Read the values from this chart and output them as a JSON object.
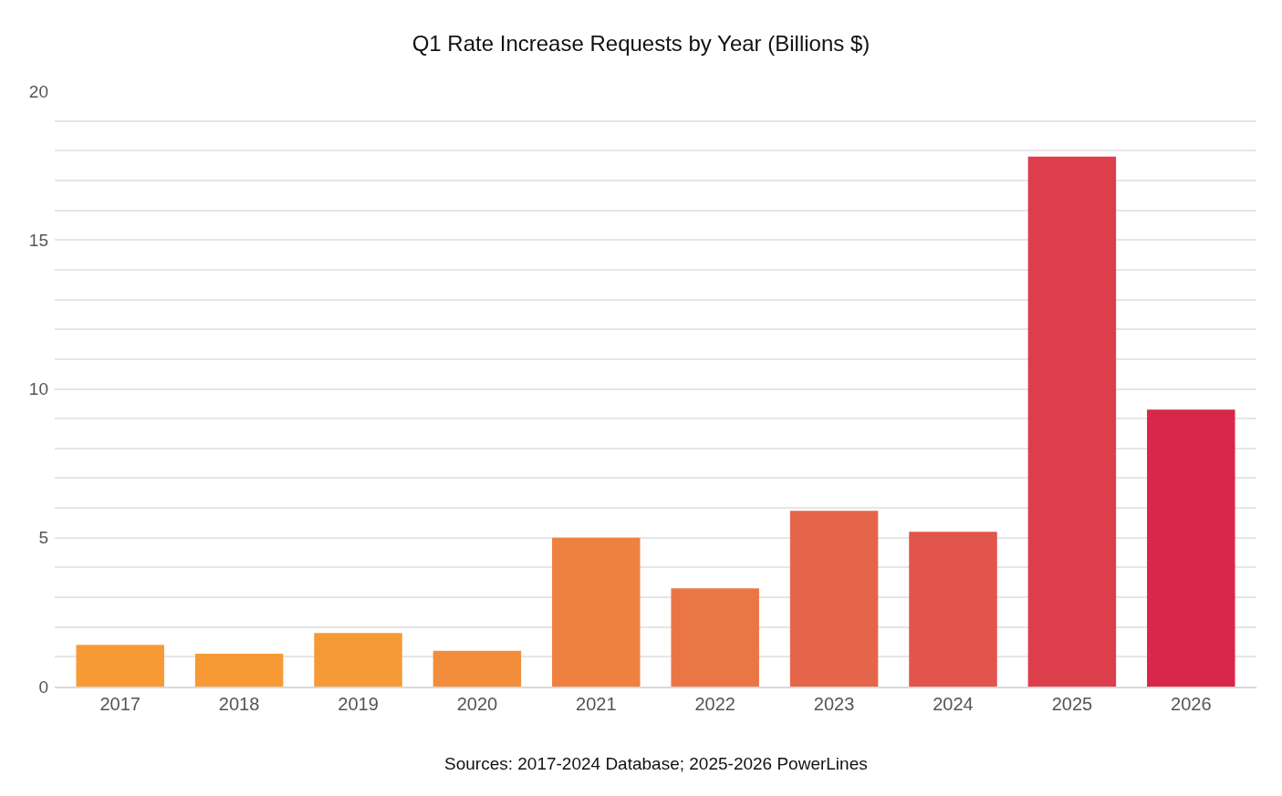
{
  "chart_data": {
    "type": "bar",
    "title": "Q1 Rate Increase Requests by Year (Billions $)",
    "categories": [
      "2017",
      "2018",
      "2019",
      "2020",
      "2021",
      "2022",
      "2023",
      "2024",
      "2025",
      "2026"
    ],
    "values": [
      1.4,
      1.1,
      1.8,
      1.2,
      5.0,
      3.3,
      5.9,
      5.2,
      17.8,
      9.3
    ],
    "colors": [
      "#f79a36",
      "#f79a36",
      "#f69a37",
      "#f28e3b",
      "#ee8140",
      "#ea7645",
      "#e5654a",
      "#e1554c",
      "#dd3e4b",
      "#d9264b"
    ],
    "ylim": [
      0,
      20
    ],
    "yticks": [
      0,
      {
        "value": 1,
        "label": null
      },
      {
        "value": 2,
        "label": null
      },
      {
        "value": 3,
        "label": null
      },
      {
        "value": 4,
        "label": null
      },
      5,
      {
        "value": 6,
        "label": null
      },
      {
        "value": 7,
        "label": null
      },
      {
        "value": 8,
        "label": null
      },
      {
        "value": 9,
        "label": null
      },
      10,
      {
        "value": 11,
        "label": null
      },
      {
        "value": 12,
        "label": null
      },
      {
        "value": 13,
        "label": null
      },
      {
        "value": 14,
        "label": null
      },
      15,
      {
        "value": 16,
        "label": null
      },
      {
        "value": 17,
        "label": null
      },
      {
        "value": 18,
        "label": null
      },
      {
        "value": 19,
        "label": null
      },
      20
    ],
    "grid": "y",
    "annotations": [
      "Sources: 2017-2024 Database; 2025-2026 PowerLines"
    ]
  }
}
